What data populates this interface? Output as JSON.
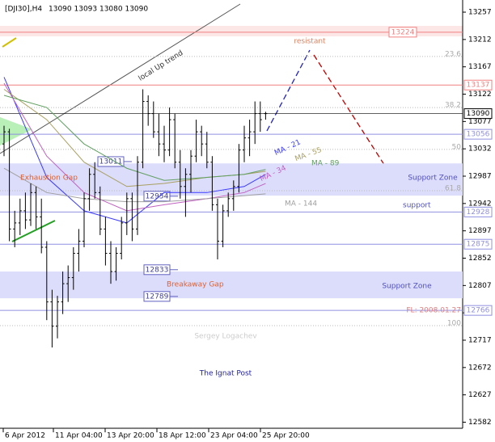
{
  "chart_data": {
    "type": "ohlc",
    "header": {
      "symbol": "[DJI30],H4",
      "ohlc": "13090 13093 13080 13090"
    },
    "ylim": [
      12572,
      13277
    ],
    "yticks": [
      13257,
      13212,
      13167,
      13122,
      13077,
      13032,
      12987,
      12942,
      12897,
      12852,
      12807,
      12762,
      12717,
      12672,
      12627,
      12582
    ],
    "xlabels": [
      "6 Apr 2012",
      "11 Apr 04:00",
      "13 Apr 20:00",
      "18 Apr 12:00",
      "23 Apr 04:00",
      "25 Apr 20:00"
    ],
    "open": [
      13040,
      13060,
      12900,
      12910,
      12930,
      12915,
      12960,
      12920,
      12870,
      12780,
      12740,
      12780,
      12810,
      12820,
      12860,
      12880,
      12950,
      12990,
      12960,
      12900,
      12860,
      12830,
      12860,
      12910,
      12950,
      12900,
      13010,
      13110,
      13090,
      13060,
      13040,
      13030,
      13080,
      13010,
      12970,
      12990,
      13020,
      13060,
      13040,
      13010,
      12940,
      12880,
      12930,
      12950,
      12970,
      13030,
      13050,
      13060,
      13090,
      13090
    ],
    "high": [
      13070,
      13065,
      12930,
      12950,
      12960,
      12975,
      12970,
      12950,
      12880,
      12800,
      12790,
      12830,
      12840,
      12870,
      12900,
      12960,
      13000,
      13010,
      12970,
      12920,
      12880,
      12870,
      12920,
      12960,
      12960,
      13020,
      13130,
      13120,
      13110,
      13090,
      13070,
      13100,
      13090,
      13030,
      13000,
      13030,
      13080,
      13070,
      13060,
      13020,
      12950,
      12940,
      12960,
      12980,
      13040,
      13070,
      13080,
      13110,
      13110,
      13093
    ],
    "low": [
      13020,
      12880,
      12870,
      12890,
      12900,
      12905,
      12900,
      12860,
      12750,
      12705,
      12720,
      12760,
      12780,
      12800,
      12830,
      12870,
      12930,
      12950,
      12890,
      12840,
      12810,
      12815,
      12850,
      12890,
      12880,
      12890,
      13000,
      13070,
      13050,
      13020,
      13010,
      13020,
      13000,
      12950,
      12920,
      12960,
      13010,
      13020,
      13000,
      12930,
      12850,
      12870,
      12920,
      12930,
      12960,
      13010,
      13020,
      13040,
      13060,
      13080
    ],
    "close": [
      13060,
      12900,
      12910,
      12930,
      12915,
      12960,
      12920,
      12870,
      12780,
      12740,
      12780,
      12810,
      12820,
      12860,
      12880,
      12950,
      12990,
      12960,
      12900,
      12860,
      12830,
      12860,
      12910,
      12950,
      12900,
      13010,
      13110,
      13090,
      13060,
      13040,
      13030,
      13080,
      13010,
      12970,
      12990,
      13020,
      13060,
      13040,
      13010,
      12940,
      12880,
      12930,
      12950,
      12970,
      13030,
      13050,
      13060,
      13090,
      13080,
      13090
    ],
    "moving_averages": [
      {
        "name": "MA - 21",
        "color": "#3a3aff",
        "x": [
          0,
          8,
          15,
          23,
          30,
          38,
          45,
          49
        ],
        "values": [
          13150,
          12985,
          12930,
          12910,
          12960,
          12960,
          12970,
          12990
        ]
      },
      {
        "name": "MA - 34",
        "color": "#c060c0",
        "x": [
          0,
          8,
          15,
          23,
          30,
          38,
          45,
          49
        ],
        "values": [
          13140,
          13020,
          12960,
          12930,
          12940,
          12950,
          12960,
          12975
        ]
      },
      {
        "name": "MA - 55",
        "color": "#a8a060",
        "x": [
          0,
          8,
          15,
          23,
          30,
          38,
          45,
          49
        ],
        "values": [
          13130,
          13080,
          13010,
          12970,
          12975,
          12985,
          12990,
          12995
        ]
      },
      {
        "name": "MA - 89",
        "color": "#60a060",
        "x": [
          0,
          8,
          15,
          23,
          30,
          38,
          45,
          49
        ],
        "values": [
          13120,
          13100,
          13040,
          13000,
          12980,
          12985,
          12990,
          12998
        ]
      },
      {
        "name": "MA - 144",
        "color": "#a0a0a0",
        "x": [
          0,
          8,
          15,
          23,
          30,
          38,
          45,
          49
        ],
        "values": [
          13000,
          12960,
          12950,
          12945,
          12945,
          12950,
          12955,
          12958
        ]
      }
    ],
    "levels": [
      {
        "value": 13224,
        "color": "#f08080"
      },
      {
        "value": 13137,
        "color": "#f08080"
      },
      {
        "value": 13090,
        "color": "#000000"
      },
      {
        "value": 13056,
        "color": "#9090e0"
      },
      {
        "value": 12928,
        "color": "#9090e0"
      },
      {
        "value": 12875,
        "color": "#9090e0"
      },
      {
        "value": 12766,
        "color": "#9090e0"
      }
    ],
    "fib_levels": [
      23.6,
      38.2,
      50.0,
      61.8,
      100.0
    ],
    "fib_values": [
      13184,
      13100,
      13031,
      12963,
      12741
    ],
    "fib_note": "FL: 2008.01.27",
    "zones": [
      {
        "label": "Support Zone",
        "range": [
          13008,
          12955
        ]
      },
      {
        "label": "Support Zone",
        "range": [
          12830,
          12786
        ]
      }
    ],
    "markers": [
      13011,
      12954,
      12833,
      12789
    ],
    "annotations": {
      "trend": "local Up trend",
      "resistant": "resistant",
      "exhaustion": "Exhaustion Gap",
      "support": "support",
      "breakaway": "Breakaway Gap",
      "author": "Sergey Logachev",
      "publisher": "The Ignat Post"
    }
  }
}
